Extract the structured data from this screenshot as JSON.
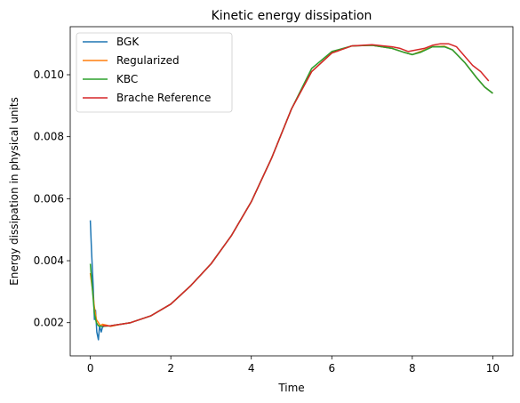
{
  "chart_data": {
    "type": "line",
    "title": "Kinetic energy dissipation",
    "xlabel": "Time",
    "ylabel": "Energy dissipation in physical units",
    "xlim": [
      -0.5,
      10.5
    ],
    "ylim": [
      0.00093,
      0.01155
    ],
    "xticks": [
      0,
      2,
      4,
      6,
      8,
      10
    ],
    "yticks": [
      0.002,
      0.004,
      0.006,
      0.008,
      0.01
    ],
    "xtick_labels": [
      "0",
      "2",
      "4",
      "6",
      "8",
      "10"
    ],
    "ytick_labels": [
      "0.002",
      "0.004",
      "0.006",
      "0.008",
      "0.010"
    ],
    "grid": false,
    "legend_position": "top-left",
    "series": [
      {
        "name": "BGK",
        "color": "#1f77b4",
        "x": [
          0.0,
          0.03,
          0.07,
          0.1,
          0.13,
          0.16,
          0.2,
          0.23,
          0.27,
          0.3,
          0.35,
          0.5,
          0.75,
          1.0,
          1.5,
          2.0,
          2.5,
          3.0,
          3.5,
          4.0,
          4.5,
          5.0,
          5.5,
          6.0,
          6.5,
          7.0,
          7.5,
          7.8,
          8.0,
          8.2,
          8.5,
          8.8,
          9.0,
          9.3,
          9.6,
          9.8,
          10.0
        ],
        "y": [
          0.0053,
          0.0043,
          0.0032,
          0.0021,
          0.0024,
          0.0017,
          0.00145,
          0.0019,
          0.0017,
          0.00185,
          0.0019,
          0.0019,
          0.00195,
          0.002,
          0.00222,
          0.0026,
          0.0032,
          0.0039,
          0.0048,
          0.0059,
          0.0073,
          0.0089,
          0.0101,
          0.0107,
          0.01093,
          0.01095,
          0.01085,
          0.01072,
          0.01065,
          0.01075,
          0.0109,
          0.0109,
          0.0108,
          0.0104,
          0.0099,
          0.0096,
          0.0094
        ]
      },
      {
        "name": "Regularized",
        "color": "#ff7f0e",
        "x": [
          0.0,
          0.05,
          0.1,
          0.15,
          0.2,
          0.25,
          0.3,
          0.4,
          0.5,
          0.75,
          1.0,
          1.5,
          2.0,
          2.5,
          3.0,
          3.5,
          4.0,
          4.5,
          5.0,
          5.5,
          6.0,
          6.5,
          7.0,
          7.5,
          7.8,
          8.0,
          8.2,
          8.5,
          8.8,
          9.0,
          9.3,
          9.6,
          9.8,
          10.0
        ],
        "y": [
          0.0036,
          0.0031,
          0.0025,
          0.0021,
          0.002,
          0.0019,
          0.00195,
          0.00192,
          0.00188,
          0.00195,
          0.002,
          0.00222,
          0.0026,
          0.0032,
          0.0039,
          0.0048,
          0.0059,
          0.0073,
          0.0089,
          0.0101,
          0.0107,
          0.01093,
          0.01095,
          0.01085,
          0.01072,
          0.01065,
          0.01075,
          0.0109,
          0.01092,
          0.0108,
          0.0104,
          0.0099,
          0.0096,
          0.0094
        ]
      },
      {
        "name": "KBC",
        "color": "#2ca02c",
        "x": [
          0.0,
          0.05,
          0.1,
          0.15,
          0.2,
          0.3,
          0.5,
          0.75,
          1.0,
          1.5,
          2.0,
          2.5,
          3.0,
          3.5,
          4.0,
          4.5,
          5.0,
          5.5,
          6.0,
          6.5,
          7.0,
          7.5,
          7.8,
          8.0,
          8.2,
          8.5,
          8.8,
          9.0,
          9.3,
          9.6,
          9.8,
          10.0
        ],
        "y": [
          0.0039,
          0.0031,
          0.0023,
          0.002,
          0.0019,
          0.00188,
          0.0019,
          0.00195,
          0.002,
          0.00222,
          0.0026,
          0.0032,
          0.0039,
          0.0048,
          0.0059,
          0.0073,
          0.0089,
          0.0102,
          0.01075,
          0.01093,
          0.01095,
          0.01085,
          0.01072,
          0.01065,
          0.01072,
          0.0109,
          0.0109,
          0.0108,
          0.0104,
          0.0099,
          0.0096,
          0.0094
        ]
      },
      {
        "name": "Brache Reference",
        "color": "#d62728",
        "x": [
          0.3,
          0.5,
          0.75,
          1.0,
          1.5,
          2.0,
          2.5,
          3.0,
          3.5,
          4.0,
          4.5,
          5.0,
          5.5,
          6.0,
          6.5,
          7.0,
          7.5,
          7.7,
          7.9,
          8.1,
          8.3,
          8.5,
          8.7,
          8.9,
          9.1,
          9.3,
          9.5,
          9.7,
          9.9
        ],
        "y": [
          0.0019,
          0.0019,
          0.00195,
          0.002,
          0.00222,
          0.0026,
          0.0032,
          0.0039,
          0.0048,
          0.0059,
          0.0073,
          0.0089,
          0.0101,
          0.0107,
          0.01093,
          0.01097,
          0.0109,
          0.01085,
          0.01075,
          0.0108,
          0.01085,
          0.01095,
          0.011,
          0.011,
          0.0109,
          0.0106,
          0.0103,
          0.0101,
          0.0098
        ]
      }
    ]
  }
}
